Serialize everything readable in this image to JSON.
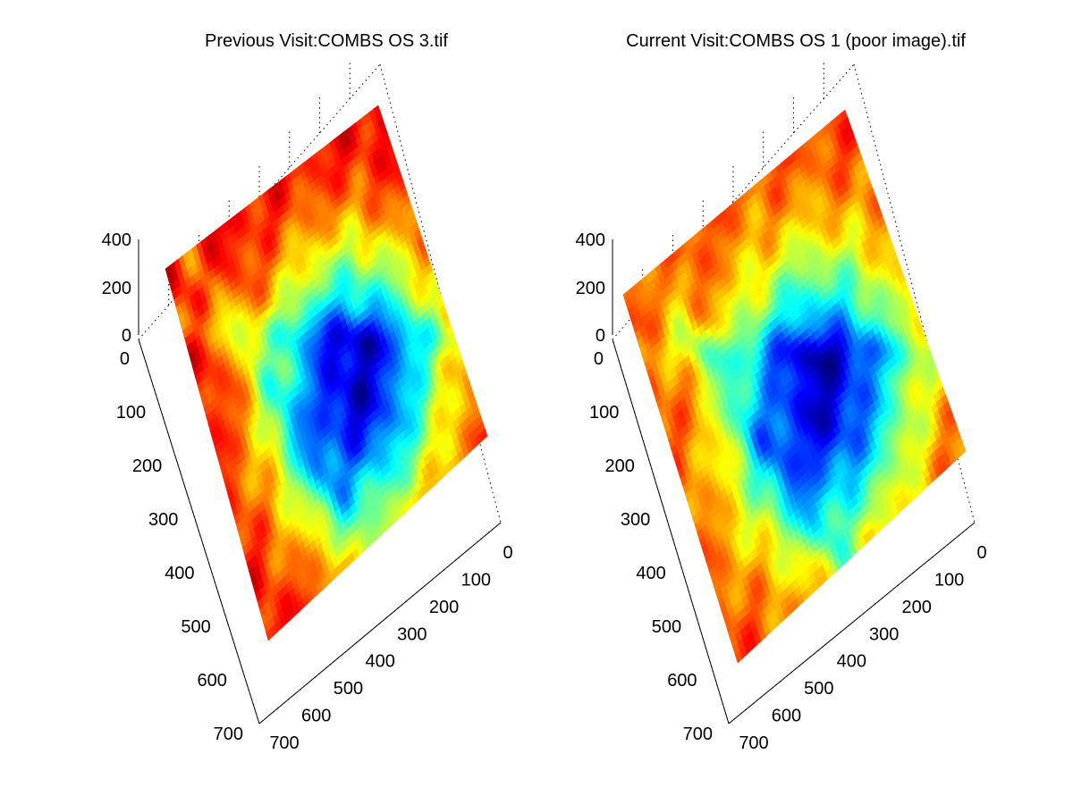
{
  "chart_data": [
    {
      "type": "surface",
      "title": "Previous Visit:COMBS OS 3.tif",
      "zlabel": "",
      "xlabel": "",
      "ylabel": "",
      "z_ticks": [
        "0",
        "200",
        "400"
      ],
      "y_ticks": [
        "0",
        "100",
        "200",
        "300",
        "400",
        "500",
        "600",
        "700"
      ],
      "x_ticks": [
        "0",
        "100",
        "200",
        "300",
        "400",
        "500",
        "600",
        "700"
      ],
      "z_range": [
        0,
        400
      ],
      "x_range": [
        0,
        700
      ],
      "y_range": [
        0,
        700
      ],
      "grid": true,
      "colormap": "jet",
      "description_values": {
        "pit_center": [
          0.58,
          0.62
        ],
        "pit_radius": 0.26,
        "edge_level": 0.9
      }
    },
    {
      "type": "surface",
      "title": "Current Visit:COMBS OS 1 (poor image).tif",
      "zlabel": "",
      "xlabel": "",
      "ylabel": "",
      "z_ticks": [
        "0",
        "200",
        "400"
      ],
      "y_ticks": [
        "0",
        "100",
        "200",
        "300",
        "400",
        "500",
        "600",
        "700"
      ],
      "x_ticks": [
        "0",
        "100",
        "200",
        "300",
        "400",
        "500",
        "600",
        "700"
      ],
      "z_range": [
        0,
        400
      ],
      "x_range": [
        0,
        700
      ],
      "y_range": [
        0,
        700
      ],
      "grid": true,
      "colormap": "jet",
      "description_values": {
        "pit_center": [
          0.57,
          0.6
        ],
        "pit_radius": 0.25,
        "edge_level": 0.82
      }
    }
  ]
}
